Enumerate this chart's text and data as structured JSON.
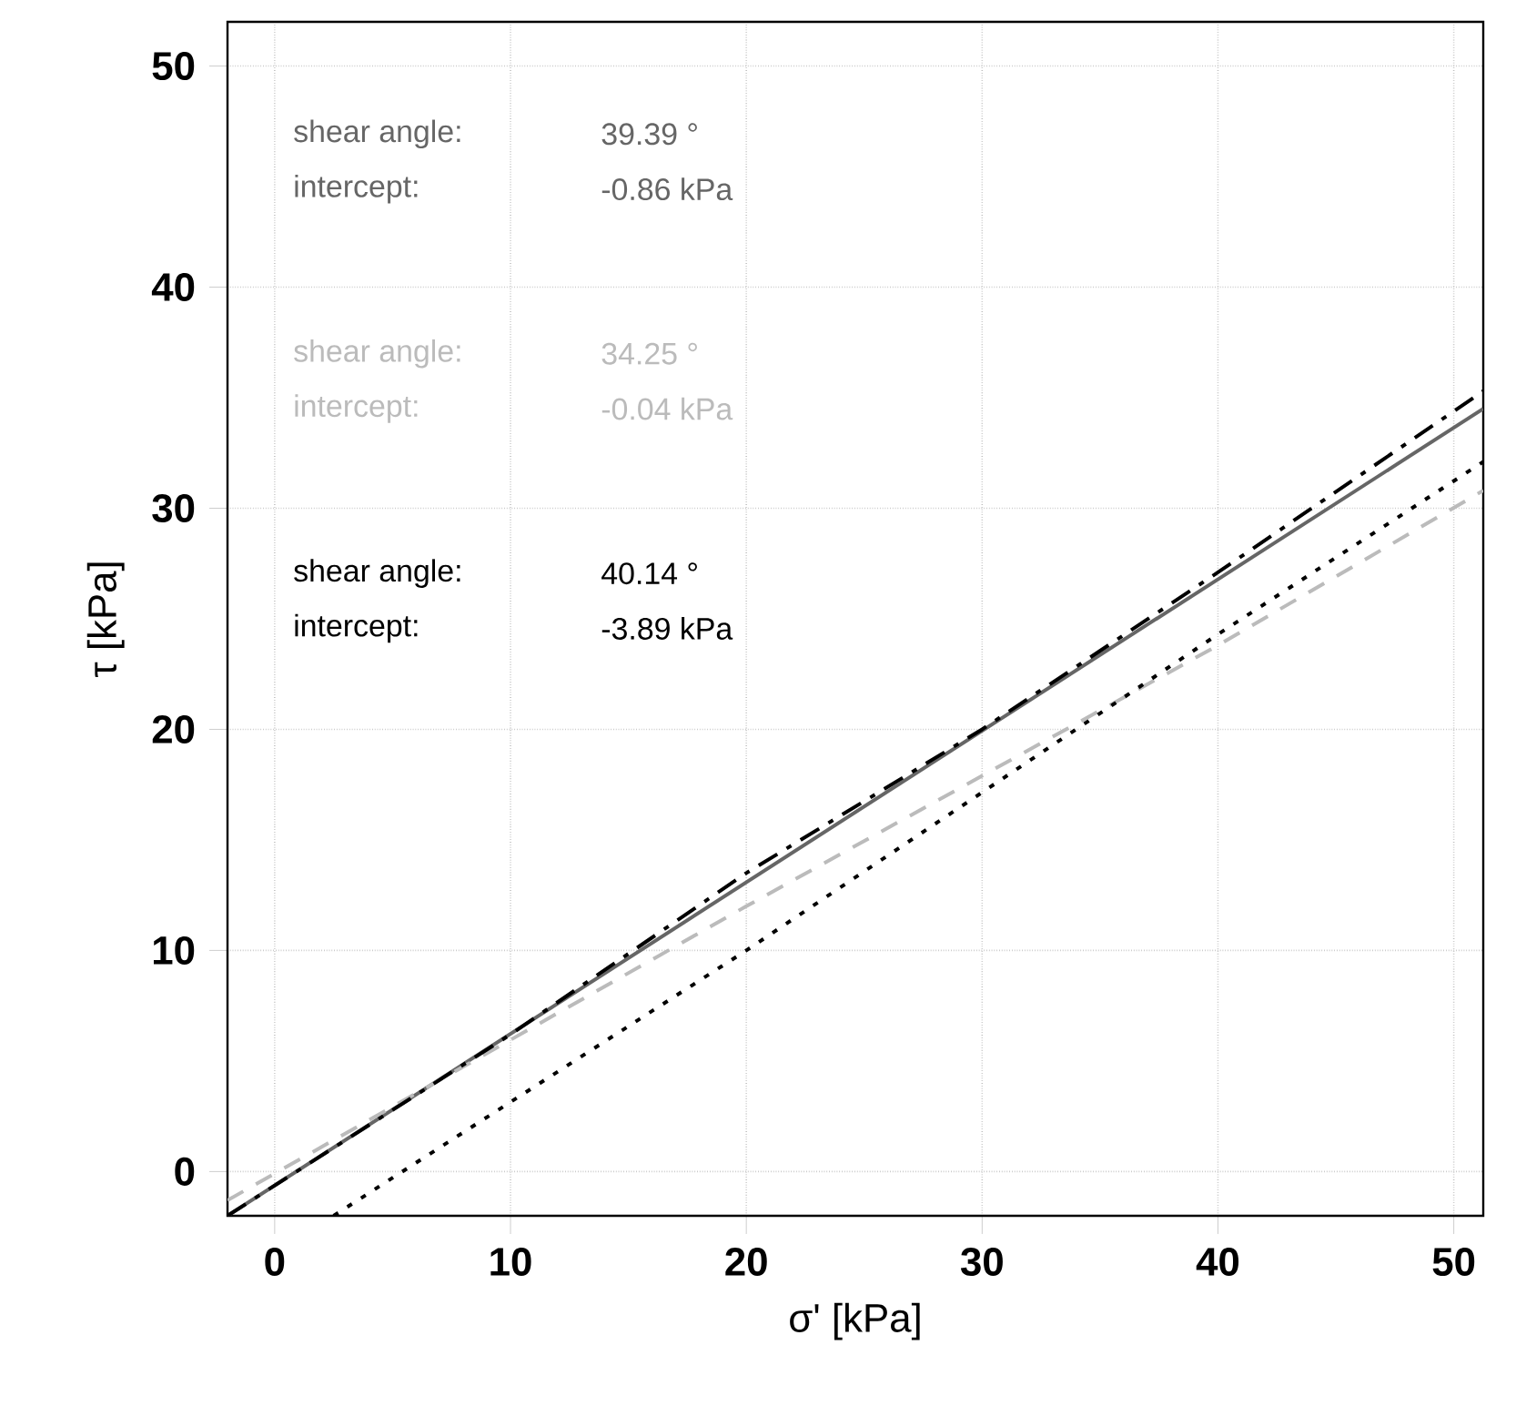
{
  "chart_data": {
    "type": "line",
    "xlabel": "σ' [kPa]",
    "ylabel": "τ [kPa]",
    "xlim": [
      -2,
      51.25
    ],
    "ylim": [
      -2,
      52
    ],
    "xticks": [
      0,
      10,
      20,
      30,
      40,
      50
    ],
    "yticks": [
      0,
      10,
      20,
      30,
      40,
      50
    ],
    "grid": true,
    "marker": "none",
    "series": [
      {
        "color": "#666666",
        "line_style": "solid",
        "x": [
          -2,
          51.25
        ],
        "values": [
          -2,
          34.5
        ]
      },
      {
        "color": "#bbbbbb",
        "line_style": "dashed",
        "x": [
          -2,
          20,
          40,
          51.25
        ],
        "values": [
          -1.3,
          12,
          23.8,
          30.8
        ]
      },
      {
        "color": "#000000",
        "line_style": "dotted",
        "x": [
          2.5,
          20,
          40,
          51.25
        ],
        "values": [
          -2,
          10,
          24.3,
          32.1
        ]
      },
      {
        "color": "#000000",
        "line_style": "dashdot",
        "x": [
          -2,
          10,
          20,
          30,
          40,
          51.25
        ],
        "values": [
          -2,
          6.2,
          13.5,
          20,
          27.1,
          35.3
        ]
      }
    ],
    "annotations": [
      "shear angle:",
      "39.39 °",
      "intercept:",
      "-0.86  kPa",
      "shear angle:",
      "34.25 °",
      "intercept:",
      "-0.04  kPa",
      "shear angle:",
      "40.14 °",
      "intercept:",
      "-3.89  kPa"
    ]
  }
}
